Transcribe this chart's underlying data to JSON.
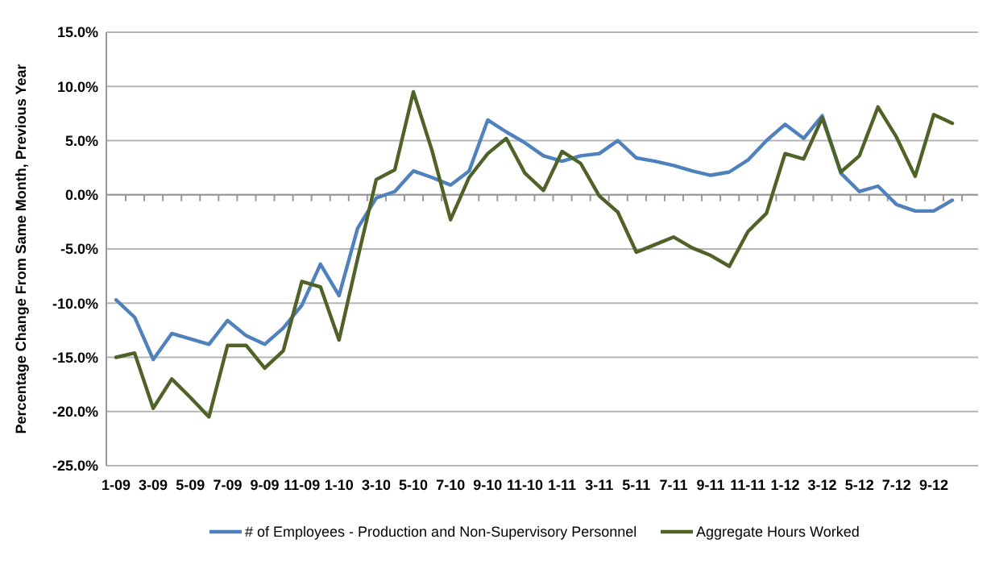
{
  "chart_data": {
    "type": "line",
    "ylabel": "Percentage Change From Same Month, Previous Year",
    "categories": [
      "1-09",
      null,
      "3-09",
      null,
      "5-09",
      null,
      "7-09",
      null,
      "9-09",
      null,
      "11-09",
      null,
      "1-10",
      null,
      "3-10",
      null,
      "5-10",
      null,
      "7-10",
      null,
      "9-10",
      null,
      "11-10",
      null,
      "1-11",
      null,
      "3-11",
      null,
      "5-11",
      null,
      "7-11",
      null,
      "9-11",
      null,
      "11-11",
      null,
      "1-12",
      null,
      "3-12",
      null,
      "5-12",
      null,
      "7-12",
      null,
      "9-12",
      null
    ],
    "series": [
      {
        "name": "# of Employees - Production and Non-Supervisory Personnel",
        "color": "#4f81bd",
        "values": [
          -9.7,
          -11.3,
          -15.2,
          -12.8,
          -13.3,
          -13.8,
          -11.6,
          -13.0,
          -13.8,
          -12.3,
          -10.2,
          -6.4,
          -9.3,
          -3.1,
          -0.3,
          0.3,
          2.2,
          1.6,
          0.9,
          2.2,
          6.9,
          5.8,
          4.8,
          3.6,
          3.1,
          3.6,
          3.8,
          5.0,
          3.4,
          3.1,
          2.7,
          2.2,
          1.8,
          2.1,
          3.2,
          5.0,
          6.5,
          5.2,
          7.3,
          2.0,
          0.3,
          0.8,
          -0.9,
          -1.5,
          -1.5,
          -0.5
        ]
      },
      {
        "name": "Aggregate Hours Worked",
        "color": "#4f6228",
        "values": [
          -15.0,
          -14.6,
          -19.7,
          -17.0,
          -18.7,
          -20.5,
          -13.9,
          -13.9,
          -16.0,
          -14.4,
          -8.0,
          -8.5,
          -13.4,
          -5.9,
          1.4,
          2.3,
          9.5,
          4.1,
          -2.3,
          1.6,
          3.8,
          5.2,
          2.0,
          0.4,
          4.0,
          2.9,
          -0.1,
          -1.6,
          -5.3,
          -4.6,
          -3.9,
          -4.9,
          -5.6,
          -6.6,
          -3.4,
          -1.7,
          3.8,
          3.3,
          7.1,
          2.1,
          3.6,
          8.1,
          5.3,
          1.7,
          7.4,
          6.6
        ]
      }
    ],
    "ylim": [
      -25,
      15
    ],
    "yticks": [
      {
        "value": -25,
        "label": "-25.0%"
      },
      {
        "value": -20,
        "label": "-20.0%"
      },
      {
        "value": -15,
        "label": "-15.0%"
      },
      {
        "value": -10,
        "label": "-10.0%"
      },
      {
        "value": -5,
        "label": "-5.0%"
      },
      {
        "value": 0,
        "label": "0.0%"
      },
      {
        "value": 5,
        "label": "5.0%"
      },
      {
        "value": 10,
        "label": "10.0%"
      },
      {
        "value": 15,
        "label": "15.0%"
      }
    ],
    "grid": "y",
    "legend": "bottom",
    "marker": "none",
    "line_style": "solid"
  }
}
